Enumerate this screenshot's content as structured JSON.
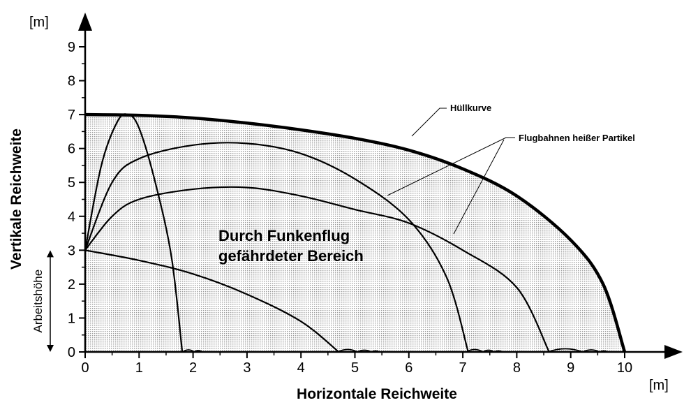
{
  "chart_data": {
    "type": "line",
    "y_unit": "[m]",
    "x_unit": "[m]",
    "ylabel": "Vertikale Reichweite",
    "xlabel": "Horizontale Reichweite",
    "xlim": [
      0,
      10
    ],
    "ylim": [
      0,
      9
    ],
    "xticks": [
      0,
      1,
      2,
      3,
      4,
      5,
      6,
      7,
      8,
      9,
      10
    ],
    "yticks": [
      0,
      1,
      2,
      3,
      4,
      5,
      6,
      7,
      8,
      9
    ],
    "annotations": {
      "envelope": "Hüllkurve",
      "trajectories": "Flugbahnen heißer Partikel",
      "area_line1": "Durch Funkenflug",
      "area_line2": "gefährdeter Bereich"
    },
    "working_height": {
      "label": "Arbeitshöhe",
      "from": 0,
      "to": 3
    },
    "color": "#000000",
    "area_fill": "#d8d8d8",
    "series": [
      {
        "x": [
          0,
          1,
          2,
          3,
          4,
          5,
          6,
          7,
          8,
          9,
          9.6,
          10
        ],
        "values": [
          7,
          6.98,
          6.9,
          6.75,
          6.55,
          6.3,
          5.95,
          5.4,
          4.6,
          3.3,
          2,
          0
        ],
        "line_width": 4.5
      },
      {
        "x": [
          0,
          0.3,
          0.6,
          0.8,
          1.0,
          1.3,
          1.6,
          1.8
        ],
        "values": [
          3,
          5.5,
          6.8,
          7,
          6.6,
          5,
          2.8,
          0
        ],
        "line_width": 2.2
      },
      {
        "x": [
          0,
          0.5,
          1,
          2,
          3,
          4,
          5,
          6,
          6.7,
          7.1
        ],
        "values": [
          3,
          5,
          5.7,
          6.1,
          6.15,
          5.85,
          5.1,
          3.9,
          2.2,
          0
        ],
        "line_width": 2.2
      },
      {
        "x": [
          0,
          0.5,
          1,
          2,
          3,
          4,
          5,
          6,
          7,
          8,
          8.6
        ],
        "values": [
          3,
          4,
          4.5,
          4.8,
          4.85,
          4.6,
          4.2,
          3.8,
          3.0,
          1.9,
          0
        ],
        "line_width": 2.2
      },
      {
        "x": [
          0,
          1,
          2,
          3,
          4,
          4.7
        ],
        "values": [
          3,
          2.7,
          2.3,
          1.7,
          0.9,
          0
        ],
        "line_width": 2.2
      }
    ]
  }
}
